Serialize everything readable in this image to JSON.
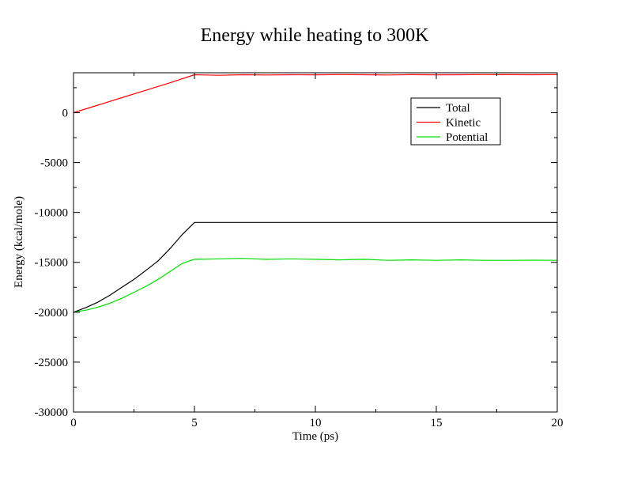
{
  "chart_data": {
    "type": "line",
    "title": "Energy while heating to 300K",
    "xlabel": "Time (ps)",
    "ylabel": "Energy (kcal/mole)",
    "xlim": [
      0,
      20
    ],
    "ylim": [
      -30000,
      4000
    ],
    "x_ticks": [
      0,
      5,
      10,
      15,
      20
    ],
    "y_ticks": [
      -30000,
      -25000,
      -20000,
      -15000,
      -10000,
      -5000,
      0
    ],
    "grid": false,
    "legend_position": "top-right",
    "series": [
      {
        "name": "Total",
        "color": "#000000",
        "x": [
          0,
          0.5,
          1,
          1.5,
          2,
          2.5,
          3,
          3.5,
          4,
          4.5,
          5,
          6,
          8,
          10,
          12,
          14,
          16,
          18,
          20
        ],
        "y": [
          -20000,
          -19550,
          -19000,
          -18300,
          -17500,
          -16700,
          -15800,
          -14850,
          -13600,
          -12200,
          -11000,
          -11000,
          -11000,
          -11000,
          -11000,
          -11000,
          -11000,
          -11000,
          -11000
        ]
      },
      {
        "name": "Kinetic",
        "color": "#ff0000",
        "x": [
          0,
          1,
          2,
          3,
          4,
          5,
          6,
          7,
          8,
          9,
          10,
          11,
          12,
          13,
          14,
          15,
          16,
          17,
          18,
          19,
          20
        ],
        "y": [
          0,
          750,
          1500,
          2250,
          3000,
          3800,
          3750,
          3800,
          3780,
          3800,
          3790,
          3820,
          3800,
          3780,
          3810,
          3790,
          3800,
          3820,
          3810,
          3800,
          3820
        ]
      },
      {
        "name": "Potential",
        "color": "#00dd00",
        "x": [
          0,
          0.5,
          1,
          1.5,
          2,
          2.5,
          3,
          3.5,
          4,
          4.5,
          5,
          6,
          7,
          8,
          9,
          10,
          11,
          12,
          13,
          14,
          15,
          16,
          17,
          18,
          19,
          20
        ],
        "y": [
          -20000,
          -19800,
          -19500,
          -19100,
          -18600,
          -18000,
          -17400,
          -16700,
          -15900,
          -15100,
          -14700,
          -14650,
          -14600,
          -14700,
          -14650,
          -14700,
          -14750,
          -14700,
          -14800,
          -14750,
          -14800,
          -14750,
          -14800,
          -14800,
          -14780,
          -14800
        ]
      }
    ]
  }
}
